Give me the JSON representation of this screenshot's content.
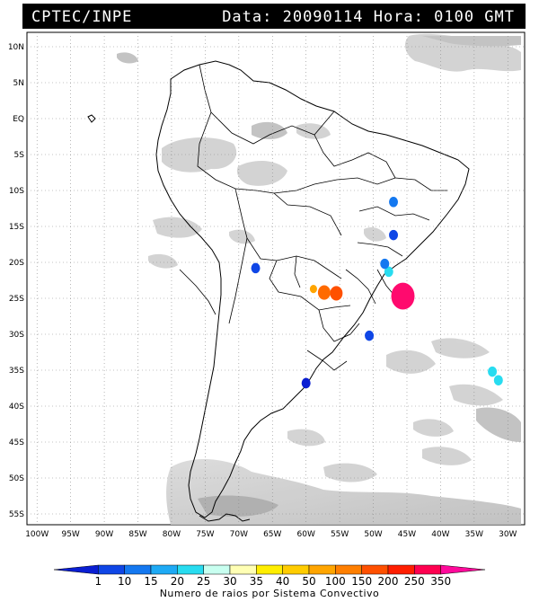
{
  "header": {
    "left": "CPTEC/INPE",
    "right": "Data: 20090114 Hora: 0100 GMT"
  },
  "lat_labels": [
    "10N",
    "5N",
    "EQ",
    "5S",
    "10S",
    "15S",
    "20S",
    "25S",
    "30S",
    "35S",
    "40S",
    "45S",
    "50S",
    "55S"
  ],
  "lon_labels": [
    "100W",
    "95W",
    "90W",
    "85W",
    "80W",
    "75W",
    "70W",
    "65W",
    "60W",
    "55W",
    "50W",
    "45W",
    "40W",
    "35W",
    "30W"
  ],
  "colorbar": {
    "labels": [
      "1",
      "10",
      "15",
      "20",
      "25",
      "30",
      "35",
      "40",
      "50",
      "100",
      "150",
      "200",
      "250",
      "350"
    ],
    "colors": [
      "#0a1ed2",
      "#0f46e6",
      "#1478f0",
      "#1eaaf5",
      "#28dcf0",
      "#c8fff0",
      "#ffffb4",
      "#ffee00",
      "#ffcc00",
      "#ffa500",
      "#ff7f00",
      "#ff5000",
      "#ff1e00",
      "#ff0050",
      "#ff0a9b"
    ],
    "caption": "Numero de raios por Sistema Convectivo"
  },
  "lightning_cells": [
    {
      "lon": -45.6,
      "lat": -24.7,
      "color": "#ff0a6e",
      "level": 350
    },
    {
      "lon": -55.5,
      "lat": -24.3,
      "color": "#ff5000",
      "level": 200
    },
    {
      "lon": -57.3,
      "lat": -24.2,
      "color": "#ff6a00",
      "level": 200
    },
    {
      "lon": -58.9,
      "lat": -23.7,
      "color": "#ffa500",
      "level": 100
    },
    {
      "lon": -47.7,
      "lat": -21.3,
      "color": "#28dcf0",
      "level": 25
    },
    {
      "lon": -48.3,
      "lat": -20.2,
      "color": "#1478f0",
      "level": 15
    },
    {
      "lon": -47.0,
      "lat": -11.6,
      "color": "#1478f0",
      "level": 15
    },
    {
      "lon": -47.0,
      "lat": -16.2,
      "color": "#0f46e6",
      "level": 10
    },
    {
      "lon": -67.5,
      "lat": -20.8,
      "color": "#0f46e6",
      "level": 10
    },
    {
      "lon": -60.0,
      "lat": -36.8,
      "color": "#0a1ed2",
      "level": 1
    },
    {
      "lon": -50.6,
      "lat": -30.2,
      "color": "#0f46e6",
      "level": 10
    },
    {
      "lon": -32.3,
      "lat": -35.2,
      "color": "#28dcf0",
      "level": 25
    },
    {
      "lon": -31.4,
      "lat": -36.4,
      "color": "#28dcf0",
      "level": 25
    }
  ]
}
